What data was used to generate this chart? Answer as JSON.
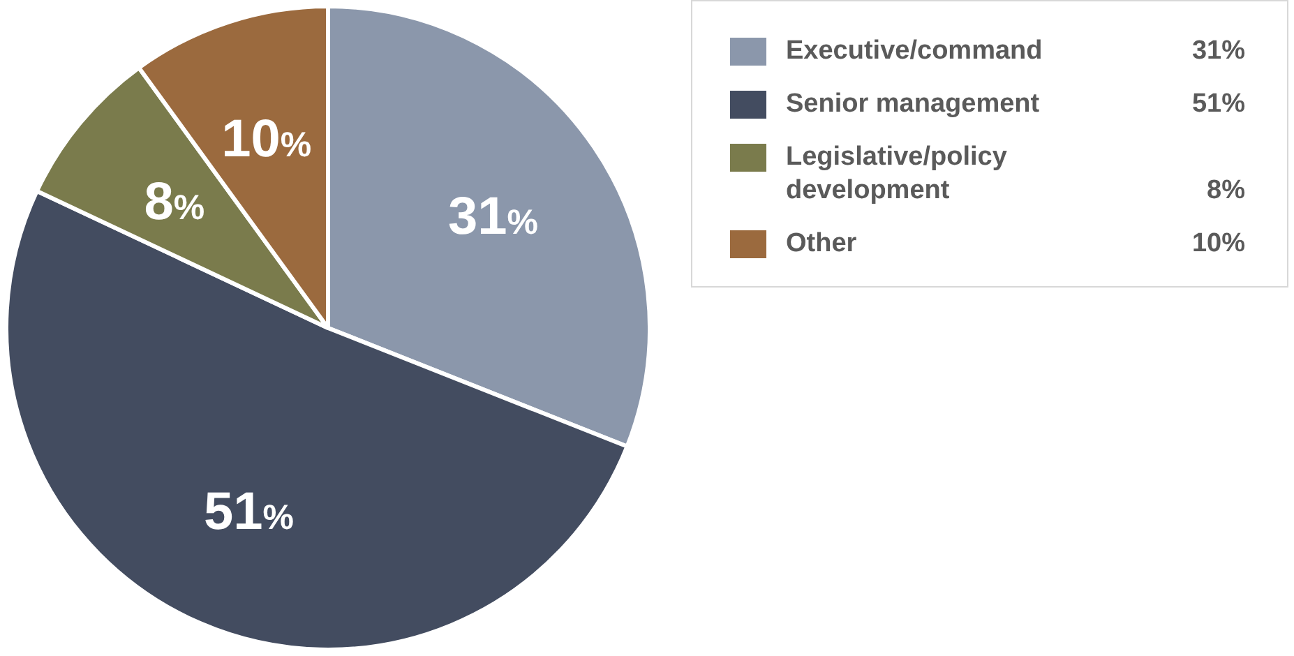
{
  "chart_data": {
    "type": "pie",
    "categories": [
      "Executive/command",
      "Senior management",
      "Legislative/policy development",
      "Other"
    ],
    "values": [
      31,
      51,
      8,
      10
    ],
    "colors": [
      "#8b97ab",
      "#434c60",
      "#7a7b4c",
      "#9b6a3e"
    ],
    "value_labels": [
      "31%",
      "51%",
      "8%",
      "10%"
    ],
    "legend": "top right"
  }
}
